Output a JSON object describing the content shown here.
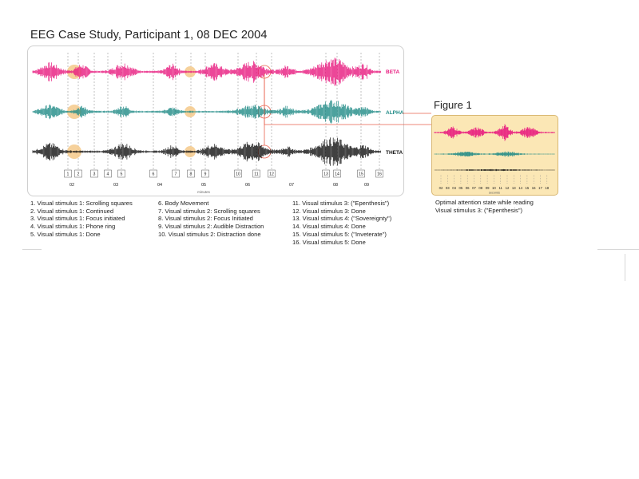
{
  "page_title": "EEG Case Study, Participant 1, 08 DEC 2004",
  "colors": {
    "beta": "#e8197e",
    "alpha": "#1f8a86",
    "theta": "#111111",
    "highlight": "#f5c98a",
    "connector": "#e8604c",
    "inset_bg": "#fbe7b5"
  },
  "chart_data": [
    {
      "type": "line",
      "title": "",
      "xlabel": "minutes",
      "x_ticks": [
        "02",
        "03",
        "04",
        "05",
        "06",
        "07",
        "08",
        "09"
      ],
      "series": [
        {
          "name": "BETA"
        },
        {
          "name": "ALPHA"
        },
        {
          "name": "THETA"
        }
      ],
      "markers": [
        "1",
        "2",
        "3",
        "4",
        "5",
        "6",
        "7",
        "8",
        "9",
        "10",
        "11",
        "12",
        "13",
        "14",
        "15",
        "16"
      ],
      "grid": true
    },
    {
      "type": "line",
      "title": "Figure 1",
      "xlabel": "seconds",
      "x_ticks": [
        "02",
        "03",
        "04",
        "05",
        "06",
        "07",
        "08",
        "09",
        "10",
        "11",
        "12",
        "13",
        "14",
        "15",
        "16",
        "17",
        "18"
      ],
      "series": [
        {},
        {},
        {}
      ]
    }
  ],
  "legend": {
    "col1": [
      "1. Visual stimulus 1: Scrolling squares",
      "2. Visual stimulus 1: Continued",
      "3. Visual stimulus 1: Focus initiated",
      "4. Visual stimulus 1: Phone ring",
      "5. Visual stimulus 1: Done"
    ],
    "col2": [
      "6. Body Movement",
      "7. Visual stimulus 2: Scrolling squares",
      "8. Visual stimulus 2: Focus Initiated",
      "9. Visual stimulus 2: Audible Distraction",
      "10. Visual stimulus 2: Distraction done"
    ],
    "col3": [
      "11. Visual stimulus 3: (\"Epenthesis\")",
      "12. Visual stimulus 3: Done",
      "13. Visual stimulus 4:  (\"Sovereignty\")",
      "14. Visual stimulus 4: Done",
      "15. Visual stimulus 5: (\"Inveterate\")",
      "16. Visual stimulus 5: Done"
    ]
  },
  "figure1": {
    "title": "Figure 1",
    "caption_line1": "Optimal attention state while reading",
    "caption_line2": "Visual stimulus 3: (\"Epenthesis\")"
  }
}
